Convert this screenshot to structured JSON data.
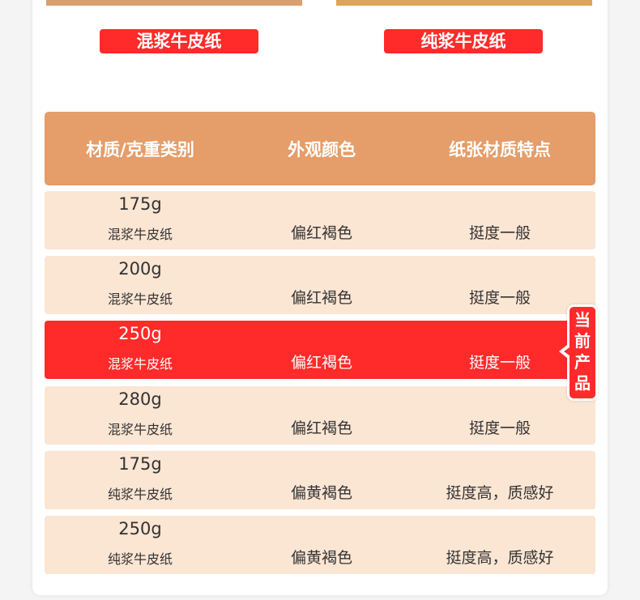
{
  "tags": [
    "混浆牛皮纸",
    "纯浆牛皮纸"
  ],
  "table": {
    "headers": [
      "材质/克重类别",
      "外观颜色",
      "纸张材质特点"
    ],
    "rows": [
      {
        "weight": "175g",
        "type": "混浆牛皮纸",
        "color": "偏红褐色",
        "feature": "挺度一般"
      },
      {
        "weight": "200g",
        "type": "混浆牛皮纸",
        "color": "偏红褐色",
        "feature": "挺度一般"
      },
      {
        "weight": "250g",
        "type": "混浆牛皮纸",
        "color": "偏红褐色",
        "feature": "挺度一般"
      },
      {
        "weight": "280g",
        "type": "混浆牛皮纸",
        "color": "偏红褐色",
        "feature": "挺度一般"
      },
      {
        "weight": "175g",
        "type": "纯浆牛皮纸",
        "color": "偏黄褐色",
        "feature": "挺度高，质感好"
      },
      {
        "weight": "250g",
        "type": "纯浆牛皮纸",
        "color": "偏黄褐色",
        "feature": "挺度高，质感好"
      }
    ],
    "current_row": 2
  },
  "badge": {
    "label": "当前产品"
  },
  "colors": {
    "accent": "#ff2a2a",
    "header": "#e59d69",
    "row": "#fbe5d3"
  }
}
